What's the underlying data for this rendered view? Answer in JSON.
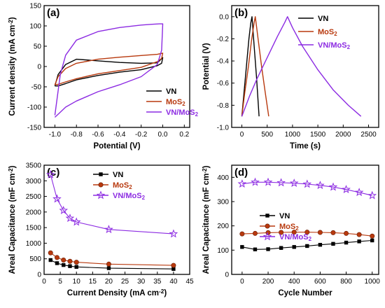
{
  "chart_data": [
    {
      "type": "line",
      "panel_label": "(a)",
      "xlabel": "Potential (V)",
      "ylabel": "Current density (mA cm⁻²)",
      "xlim": [
        -1.1,
        0.25
      ],
      "ylim": [
        -150,
        150
      ],
      "xticks": [
        -1.0,
        -0.8,
        -0.6,
        -0.4,
        -0.2,
        0.0,
        0.2
      ],
      "xtick_labels": [
        "-1.0",
        "-0.8",
        "-0.6",
        "-0.4",
        "-0.2",
        "0.0",
        "0.2"
      ],
      "yticks": [
        -150,
        -100,
        -50,
        0,
        50,
        100,
        150
      ],
      "ytick_labels": [
        "-150",
        "-100",
        "-50",
        "0",
        "50",
        "100",
        "150"
      ],
      "legend_position": "bottom-right",
      "series": [
        {
          "name": "VN",
          "color": "#000000",
          "x": [
            -1.0,
            -0.97,
            -0.9,
            -0.8,
            -0.6,
            -0.4,
            -0.2,
            -0.05,
            0.0,
            -0.01,
            -0.05,
            -0.2,
            -0.4,
            -0.6,
            -0.8,
            -0.9,
            -0.97,
            -1.0
          ],
          "y": [
            -48,
            -20,
            5,
            18,
            14,
            10,
            8,
            9,
            22,
            8,
            2,
            -8,
            -14,
            -22,
            -33,
            -42,
            -48,
            -48
          ]
        },
        {
          "name": "MoS2",
          "color": "#b8390e",
          "x": [
            -1.0,
            -0.97,
            -0.9,
            -0.8,
            -0.6,
            -0.4,
            -0.2,
            -0.05,
            0.0,
            -0.01,
            -0.05,
            -0.2,
            -0.4,
            -0.6,
            -0.8,
            -0.9,
            -0.97,
            -1.0
          ],
          "y": [
            -45,
            -25,
            -5,
            8,
            18,
            23,
            27,
            30,
            33,
            20,
            12,
            -2,
            -10,
            -18,
            -30,
            -38,
            -44,
            -45
          ]
        },
        {
          "name": "VN/MoS2",
          "color": "#8c2be2",
          "x": [
            -1.0,
            -0.98,
            -0.95,
            -0.9,
            -0.8,
            -0.6,
            -0.4,
            -0.2,
            -0.1,
            -0.03,
            0.0,
            -0.01,
            -0.05,
            -0.2,
            -0.4,
            -0.6,
            -0.8,
            -0.9,
            -0.96,
            -1.0
          ],
          "y": [
            -120,
            -80,
            -20,
            28,
            65,
            86,
            96,
            102,
            104,
            105,
            105,
            40,
            5,
            -25,
            -45,
            -62,
            -85,
            -100,
            -115,
            -125
          ]
        }
      ]
    },
    {
      "type": "line",
      "panel_label": "(b)",
      "xlabel": "Time (s)",
      "ylabel": "Potential (V)",
      "xlim": [
        -200,
        2700
      ],
      "ylim": [
        -1.0,
        0.1
      ],
      "xticks": [
        0,
        500,
        1000,
        1500,
        2000,
        2500
      ],
      "xtick_labels": [
        "0",
        "500",
        "1000",
        "1500",
        "2000",
        "2500"
      ],
      "yticks": [
        0.0,
        -0.2,
        -0.4,
        -0.6,
        -0.8,
        -1.0
      ],
      "ytick_labels": [
        "0.0",
        "-0.2",
        "-0.4",
        "-0.6",
        "-0.8",
        "-1.0"
      ],
      "legend_position": "top-right",
      "series": [
        {
          "name": "VN",
          "color": "#000000",
          "x": [
            0,
            40,
            90,
            140,
            175,
            200,
            240,
            290,
            340
          ],
          "y": [
            -0.9,
            -0.7,
            -0.45,
            -0.2,
            -0.06,
            0.0,
            -0.25,
            -0.55,
            -0.9
          ]
        },
        {
          "name": "MoS2",
          "color": "#b8390e",
          "x": [
            0,
            60,
            130,
            190,
            240,
            265,
            320,
            390,
            460,
            530
          ],
          "y": [
            -0.9,
            -0.68,
            -0.45,
            -0.22,
            -0.06,
            0.0,
            -0.2,
            -0.45,
            -0.68,
            -0.9
          ]
        },
        {
          "name": "VN/MoS2",
          "color": "#8c2be2",
          "x": [
            0,
            150,
            300,
            500,
            700,
            850,
            900,
            1000,
            1200,
            1500,
            1800,
            2100,
            2350
          ],
          "y": [
            -0.9,
            -0.72,
            -0.56,
            -0.37,
            -0.18,
            -0.05,
            0.0,
            -0.1,
            -0.27,
            -0.48,
            -0.66,
            -0.8,
            -0.9
          ]
        }
      ]
    },
    {
      "type": "line",
      "panel_label": "(c)",
      "xlabel": "Current Density (mA cm⁻²)",
      "ylabel": "Areal Capacitance (mF cm⁻²)",
      "xlim": [
        0,
        45
      ],
      "ylim": [
        0,
        3500
      ],
      "xticks": [
        0,
        5,
        10,
        15,
        20,
        25,
        30,
        35,
        40,
        45
      ],
      "xtick_labels": [
        "0",
        "5",
        "10",
        "15",
        "20",
        "25",
        "30",
        "35",
        "40",
        "45"
      ],
      "yticks": [
        0,
        500,
        1000,
        1500,
        2000,
        2500,
        3000,
        3500
      ],
      "ytick_labels": [
        "0",
        "500",
        "1000",
        "1500",
        "2000",
        "2500",
        "3000",
        "3500"
      ],
      "legend_position": "top-right",
      "categories": [
        2,
        4,
        6,
        8,
        10,
        20,
        40
      ],
      "series": [
        {
          "name": "VN",
          "color": "#000000",
          "marker": "square",
          "x": [
            2,
            4,
            6,
            8,
            10,
            20,
            40
          ],
          "values": [
            460,
            360,
            300,
            265,
            240,
            200,
            175
          ]
        },
        {
          "name": "MoS2",
          "color": "#b8390e",
          "marker": "circle",
          "x": [
            2,
            4,
            6,
            8,
            10,
            20,
            40
          ],
          "values": [
            690,
            540,
            460,
            420,
            390,
            330,
            290
          ]
        },
        {
          "name": "VN/MoS2",
          "color": "#8c2be2",
          "marker": "star",
          "x": [
            2,
            4,
            6,
            8,
            10,
            20,
            40
          ],
          "values": [
            3200,
            2420,
            2050,
            1800,
            1680,
            1440,
            1300
          ]
        }
      ]
    },
    {
      "type": "line",
      "panel_label": "(d)",
      "xlabel": "Cycle Number",
      "ylabel": "Areal Capacitance (mF cm⁻²)",
      "xlim": [
        -80,
        1050
      ],
      "ylim": [
        0,
        450
      ],
      "xticks": [
        0,
        200,
        400,
        600,
        800,
        1000
      ],
      "xtick_labels": [
        "0",
        "200",
        "400",
        "600",
        "800",
        "1000"
      ],
      "yticks": [
        0,
        100,
        200,
        300,
        400
      ],
      "ytick_labels": [
        "0",
        "100",
        "200",
        "300",
        "400"
      ],
      "legend_position": "center-left",
      "series": [
        {
          "name": "VN",
          "color": "#000000",
          "marker": "square",
          "x": [
            0,
            100,
            200,
            300,
            400,
            500,
            600,
            700,
            800,
            900,
            1000
          ],
          "values": [
            113,
            103,
            104,
            109,
            113,
            117,
            122,
            126,
            131,
            136,
            140
          ]
        },
        {
          "name": "MoS2",
          "color": "#b8390e",
          "marker": "circle",
          "x": [
            0,
            100,
            200,
            300,
            400,
            500,
            600,
            700,
            800,
            900,
            1000
          ],
          "values": [
            167,
            169,
            172,
            173,
            174,
            174,
            173,
            172,
            169,
            164,
            158
          ]
        },
        {
          "name": "VN/MoS2",
          "color": "#8c2be2",
          "marker": "star",
          "x": [
            0,
            100,
            200,
            300,
            400,
            500,
            600,
            700,
            800,
            900,
            1000
          ],
          "values": [
            373,
            380,
            380,
            378,
            376,
            372,
            367,
            360,
            350,
            338,
            325
          ]
        }
      ]
    }
  ]
}
